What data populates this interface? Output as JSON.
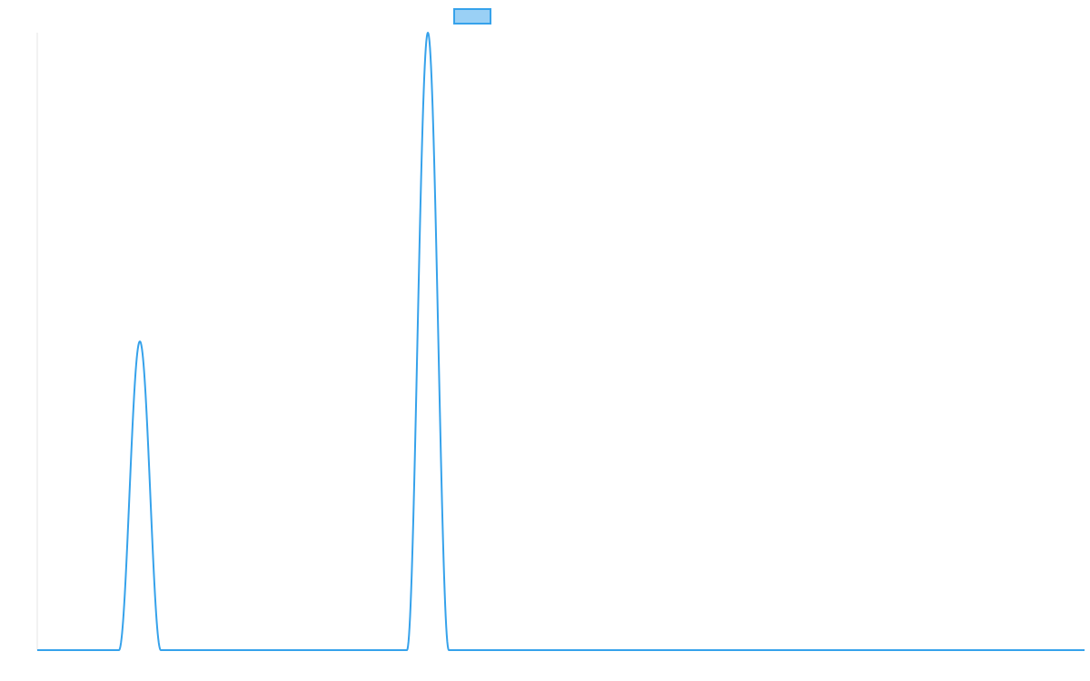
{
  "chart_data": {
    "type": "line",
    "title": "",
    "xlabel": "",
    "ylabel": "",
    "grid": false,
    "legend": "top-center",
    "x": [
      0,
      2,
      4,
      6,
      8,
      10,
      12,
      14,
      16,
      18,
      20,
      22,
      24,
      26,
      28,
      30,
      32,
      34,
      36,
      38,
      40,
      42,
      44,
      46,
      48,
      50,
      52,
      54,
      56,
      58,
      60,
      62,
      64,
      66,
      68,
      70,
      72,
      74,
      76,
      78,
      80,
      82,
      84,
      86,
      88,
      90,
      92,
      94,
      96,
      98,
      100
    ],
    "xlim": [
      0,
      100
    ],
    "ylim": [
      0,
      100
    ],
    "series": [
      {
        "name": "",
        "color": "#36a2eb",
        "fill_color": "#9ad0f5",
        "peaks": [
          {
            "center": 9.8,
            "half_width": 2.0,
            "height": 50
          },
          {
            "center": 37.3,
            "half_width": 2.0,
            "height": 100
          }
        ],
        "baseline": 0
      }
    ]
  }
}
